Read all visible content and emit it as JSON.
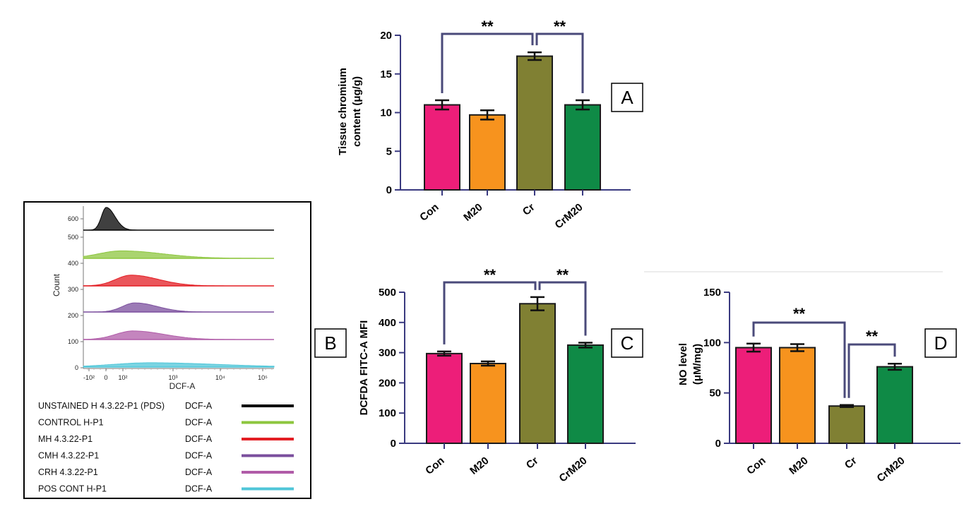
{
  "colors": {
    "Con": "#ed1e79",
    "M20": "#f7931e",
    "Cr": "#808033",
    "CrM20": "#0f8a46",
    "bracket": "#4a4a7a",
    "axis": "#3a3a80"
  },
  "chart_data": [
    {
      "panel": "A",
      "type": "bar",
      "categories": [
        "Con",
        "M20",
        "Cr",
        "CrM20"
      ],
      "values": [
        11.0,
        9.7,
        17.3,
        11.0
      ],
      "errors": [
        0.6,
        0.6,
        0.5,
        0.6
      ],
      "ylabel_lines": [
        "Tissue chromium",
        "content (μg/g)"
      ],
      "ylim": [
        0,
        20
      ],
      "yticks": [
        "0",
        "5",
        "10",
        "15",
        "20"
      ],
      "brackets": [
        {
          "from": 0,
          "to": 2,
          "label": "**"
        },
        {
          "from": 2,
          "to": 3,
          "label": "**"
        }
      ]
    },
    {
      "panel": "C",
      "type": "bar",
      "categories": [
        "Con",
        "M20",
        "Cr",
        "CrM20"
      ],
      "values": [
        297,
        264,
        462,
        325
      ],
      "errors": [
        7,
        7,
        22,
        8
      ],
      "ylabel_lines": [
        "DCFDA FITC-A MFI"
      ],
      "ylim": [
        0,
        500
      ],
      "yticks": [
        "0",
        "100",
        "200",
        "300",
        "400",
        "500"
      ],
      "brackets": [
        {
          "from": 0,
          "to": 2,
          "label": "**"
        },
        {
          "from": 2,
          "to": 3,
          "label": "**"
        }
      ]
    },
    {
      "panel": "D",
      "type": "bar",
      "categories": [
        "Con",
        "M20",
        "Cr",
        "CrM20"
      ],
      "values": [
        95,
        95,
        37,
        76
      ],
      "errors": [
        4,
        3.5,
        1,
        3
      ],
      "ylabel_lines": [
        "NO level",
        "(μM/mg)"
      ],
      "ylim": [
        0,
        150
      ],
      "yticks": [
        "0",
        "50",
        "100",
        "150"
      ],
      "brackets": [
        {
          "from": 0,
          "to": 2,
          "label": "**"
        },
        {
          "from": 2,
          "to": 3,
          "label": "**"
        }
      ]
    },
    {
      "panel": "B",
      "type": "area",
      "ylabel": "Count",
      "xlabel": "DCF-A",
      "yticks": [
        "0",
        "100",
        "200",
        "300",
        "400",
        "500",
        "600"
      ],
      "xticks": [
        "-10²",
        "0",
        "10²",
        "10³",
        "10⁴",
        "10⁵"
      ],
      "series": [
        {
          "name": "UNSTAINED H 4.3.22-P1 (PDS)",
          "channel": "DCF-A",
          "color": "#000000",
          "peak_x": 0.12,
          "height": 0.85,
          "width": 0.025
        },
        {
          "name": "CONTROL H-P1",
          "channel": "DCF-A",
          "color": "#8dc63f",
          "peak_x": 0.2,
          "height": 0.28,
          "width": 0.12
        },
        {
          "name": "MH 4.3.22-P1",
          "channel": "DCF-A",
          "color": "#e31e24",
          "peak_x": 0.25,
          "height": 0.4,
          "width": 0.08
        },
        {
          "name": "CMH 4.3.22-P1",
          "channel": "DCF-A",
          "color": "#7b4f9d",
          "peak_x": 0.27,
          "height": 0.34,
          "width": 0.065
        },
        {
          "name": "CRH 4.3.22-P1",
          "channel": "DCF-A",
          "color": "#b05ca8",
          "peak_x": 0.26,
          "height": 0.32,
          "width": 0.09
        },
        {
          "name": "POS CONT H-P1",
          "channel": "DCF-A",
          "color": "#4fc6d8",
          "peak_x": 0.35,
          "height": 0.16,
          "width": 0.2
        }
      ]
    }
  ]
}
